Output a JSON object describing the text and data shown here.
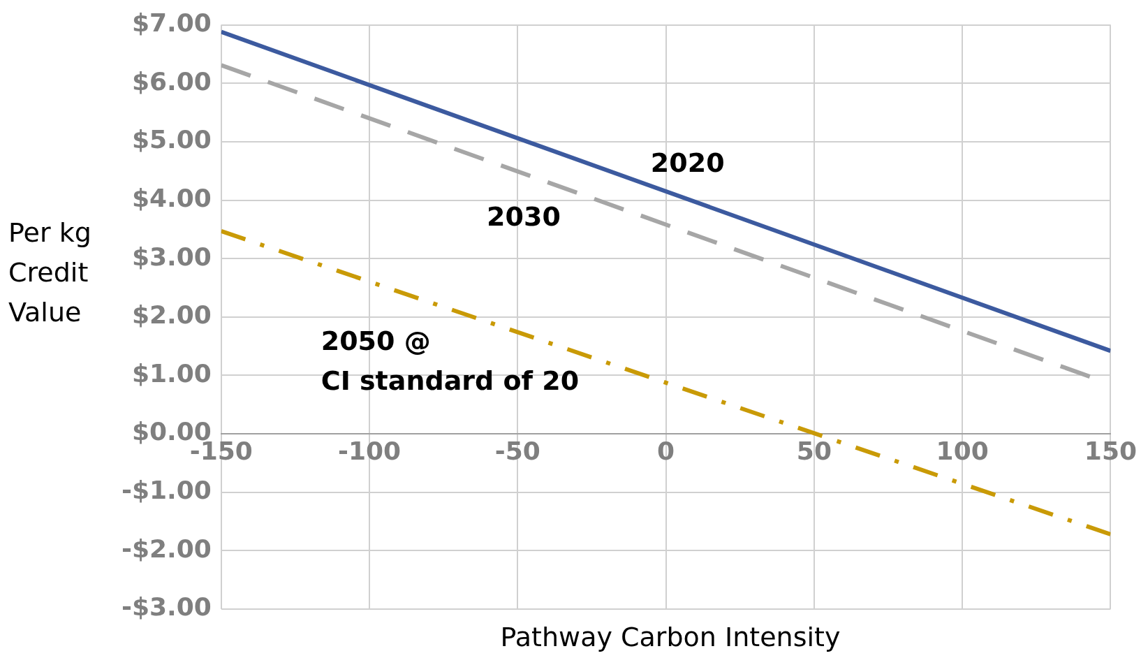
{
  "chart_data": {
    "type": "line",
    "xlabel": "Pathway Carbon Intensity",
    "ylabel": "Per kg Credit Value",
    "xlim": [
      -150,
      150
    ],
    "xticks": [
      -150,
      -100,
      -50,
      0,
      50,
      100,
      150
    ],
    "ylim": [
      -3,
      7
    ],
    "yticks": [
      {
        "value": -3,
        "label": "-$3.00"
      },
      {
        "value": -2,
        "label": "-$2.00"
      },
      {
        "value": -1,
        "label": "-$1.00"
      },
      {
        "value": 0,
        "label": "$0.00"
      },
      {
        "value": 1,
        "label": "$1.00"
      },
      {
        "value": 2,
        "label": "$2.00"
      },
      {
        "value": 3,
        "label": "$3.00"
      },
      {
        "value": 4,
        "label": "$4.00"
      },
      {
        "value": 5,
        "label": "$5.00"
      },
      {
        "value": 6,
        "label": "$6.00"
      },
      {
        "value": 7,
        "label": "$7.00"
      }
    ],
    "grid": true,
    "legend": false,
    "marker": "none",
    "series": [
      {
        "name": "2020",
        "color": "#3c5a9f",
        "line_style": "solid",
        "x": [
          -150,
          150
        ],
        "values": [
          6.88,
          1.42
        ]
      },
      {
        "name": "2030",
        "color": "#a6a6a6",
        "line_style": "dashed",
        "x": [
          -150,
          143
        ],
        "values": [
          6.31,
          0.98
        ]
      },
      {
        "name": "2050 @\nCI standard of 20",
        "color": "#c99a06",
        "line_style": "dashdot",
        "x": [
          -150,
          150
        ],
        "values": [
          3.47,
          -1.72
        ]
      }
    ]
  }
}
